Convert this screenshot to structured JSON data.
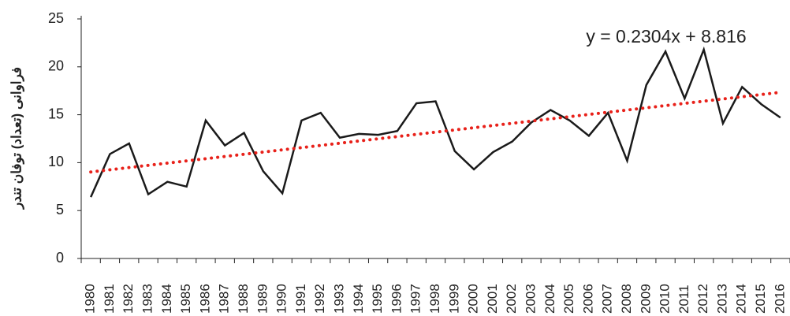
{
  "chart_data": {
    "type": "line",
    "y_label": "فراوانی (تعداد) توفان تندر",
    "categories": [
      "1980",
      "1981",
      "1982",
      "1983",
      "1984",
      "1985",
      "1986",
      "1987",
      "1988",
      "1989",
      "1990",
      "1991",
      "1992",
      "1993",
      "1994",
      "1995",
      "1996",
      "1997",
      "1998",
      "1999",
      "2000",
      "2001",
      "2002",
      "2003",
      "2004",
      "2005",
      "2006",
      "2007",
      "2008",
      "2009",
      "2010",
      "2011",
      "2012",
      "2013",
      "2014",
      "2015",
      "2016"
    ],
    "series": [
      {
        "color": "#1a1a1a",
        "values": [
          6.4,
          10.9,
          12.0,
          6.7,
          8.0,
          7.5,
          14.4,
          11.8,
          13.1,
          9.1,
          6.8,
          14.4,
          15.2,
          12.6,
          13.0,
          12.9,
          13.3,
          16.2,
          16.4,
          11.2,
          9.3,
          11.1,
          12.2,
          14.2,
          15.5,
          14.4,
          12.8,
          15.2,
          10.2,
          18.1,
          21.6,
          16.7,
          21.8,
          14.1,
          17.9,
          16.1,
          14.7
        ]
      }
    ],
    "trendline": {
      "type": "linear",
      "label": "y = 0.2304x + 8.816",
      "color": "#e8211a"
    },
    "ylim": [
      0,
      25
    ],
    "yticks": [
      0,
      5,
      10,
      15,
      20,
      25
    ],
    "grid": false
  }
}
